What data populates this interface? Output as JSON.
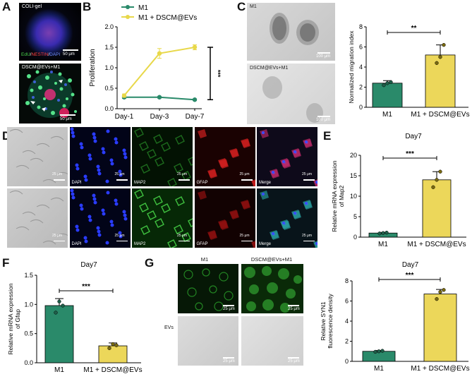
{
  "panels": {
    "A": {
      "letter": "A",
      "top_label": "COLI-gel",
      "stain_edu": "EdU",
      "stain_sep1": "/",
      "stain_nestin": "NESTIN",
      "stain_sep2": "/",
      "stain_dapi": "DAPI",
      "scale1": "50 μm",
      "bottom_label": "DSCM@EVs+M1",
      "scale2": "50 μm"
    },
    "B": {
      "letter": "B"
    },
    "C": {
      "letter": "C",
      "img_top_label": "M1",
      "img_bottom_label": "DSCM@EVs+M1",
      "scale_top": "100 μm",
      "scale_bottom": "100 μm"
    },
    "D": {
      "letter": "D",
      "labels_row1": [
        "DAPI",
        "MAP2",
        "GFAP",
        "Merge"
      ],
      "labels_row2": [
        "DAPI",
        "MAP2",
        "GFAP",
        "Merge"
      ],
      "scale": "25 μm"
    },
    "E": {
      "letter": "E"
    },
    "F": {
      "letter": "F"
    },
    "G": {
      "letter": "G",
      "col1": "M1",
      "col2": "DSCM@EVs+M1",
      "row2_label": "EVs",
      "scale": "25 μm"
    }
  },
  "colors": {
    "green": "#2a8a6a",
    "yellow": "#ecd75a",
    "m1_line": "#2a8a6a",
    "dscm_line": "#e8d84a"
  },
  "chart_data": [
    {
      "id": "B",
      "type": "line",
      "ylabel": "Proliferation",
      "categories": [
        "Day-1",
        "Day-3",
        "Day-7"
      ],
      "ylim": [
        0,
        2.0
      ],
      "yticks": [
        "0.0",
        "0.5",
        "1.0",
        "1.5",
        "2.0"
      ],
      "series": [
        {
          "name": "M1",
          "values": [
            0.28,
            0.28,
            0.22
          ],
          "err": [
            0.03,
            0.02,
            0.02
          ]
        },
        {
          "name": "M1 + DSCM@EVs",
          "values": [
            0.32,
            1.35,
            1.5
          ],
          "err": [
            0.04,
            0.12,
            0.06
          ]
        }
      ],
      "significance": "***"
    },
    {
      "id": "C",
      "type": "bar",
      "ylabel": "Normalized migration index",
      "categories": [
        "M1",
        "M1 + DSCM@EVs"
      ],
      "values": [
        2.4,
        5.2
      ],
      "err": [
        0.25,
        1.0
      ],
      "points": [
        [
          2.2,
          2.4,
          2.5
        ],
        [
          4.4,
          5.0,
          6.2
        ]
      ],
      "ylim": [
        0,
        8
      ],
      "yticks": [
        "0",
        "2",
        "4",
        "6",
        "8"
      ],
      "significance": "**"
    },
    {
      "id": "E",
      "type": "bar",
      "title": "Day7",
      "ylabel": "Relative mRNA expression of Map2",
      "categories": [
        "M1",
        "M1 + DSCM@EVs"
      ],
      "values": [
        1.0,
        14.0
      ],
      "err": [
        0.15,
        2.0
      ],
      "points": [
        [
          0.9,
          1.0,
          1.1
        ],
        [
          12.2,
          14.0,
          16.0
        ]
      ],
      "ylim": [
        0,
        20
      ],
      "yticks": [
        "0",
        "5",
        "10",
        "15",
        "20"
      ],
      "significance": "***"
    },
    {
      "id": "F",
      "type": "bar",
      "title": "Day7",
      "ylabel": "Relative mRNA expression of Gfap",
      "categories": [
        "M1",
        "M1 + DSCM@EVs"
      ],
      "values": [
        0.98,
        0.29
      ],
      "err": [
        0.12,
        0.05
      ],
      "points": [
        [
          0.86,
          1.05,
          0.98
        ],
        [
          0.25,
          0.32,
          0.3
        ]
      ],
      "ylim": [
        0,
        1.5
      ],
      "yticks": [
        "0.0",
        "0.5",
        "1.0",
        "1.5"
      ],
      "significance": "***"
    },
    {
      "id": "G",
      "type": "bar",
      "title": "Day7",
      "ylabel": "Relative SYN1 fluorescence density",
      "categories": [
        "M1",
        "M1 + DSCM@EVs"
      ],
      "values": [
        1.0,
        6.7
      ],
      "err": [
        0.08,
        0.45
      ],
      "points": [
        [
          0.95,
          1.0,
          1.05
        ],
        [
          6.2,
          6.9,
          7.1
        ]
      ],
      "ylim": [
        0,
        8
      ],
      "yticks": [
        "0",
        "2",
        "4",
        "6",
        "8"
      ],
      "significance": "***"
    }
  ]
}
